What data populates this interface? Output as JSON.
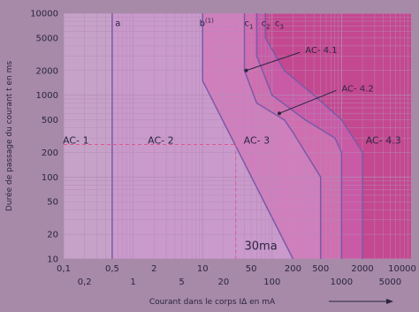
{
  "colors": {
    "background": "#a78aa8",
    "zone_ac1": "#c6a2c8",
    "zone_ac2": "#c99acb",
    "zone_ac3": "#d07fbd",
    "zone_ac41": "#cf6fb0",
    "zone_ac42": "#c95aa6",
    "zone_ac43": "#c4488f",
    "grid": "#b58ab8",
    "curve": "#7a5aa8",
    "text": "#2a2540",
    "dashed": "#e0578f"
  },
  "chart_data": {
    "type": "line",
    "x_scale": "log",
    "y_scale": "log",
    "xlabel": "Courant dans le corps IΔ en mA",
    "ylabel": "Durée de passage du courant t en ms",
    "xlim": [
      0.1,
      10000
    ],
    "ylim": [
      10,
      10000
    ],
    "x_ticks": [
      {
        "value": 0.1,
        "label": "0,1",
        "row": 1
      },
      {
        "value": 0.2,
        "label": "0,2",
        "row": 2
      },
      {
        "value": 0.5,
        "label": "0,5",
        "row": 1
      },
      {
        "value": 1,
        "label": "1",
        "row": 2
      },
      {
        "value": 2,
        "label": "2",
        "row": 1
      },
      {
        "value": 5,
        "label": "5",
        "row": 2
      },
      {
        "value": 10,
        "label": "10",
        "row": 1
      },
      {
        "value": 20,
        "label": "20",
        "row": 2
      },
      {
        "value": 50,
        "label": "50",
        "row": 1
      },
      {
        "value": 100,
        "label": "100",
        "row": 2
      },
      {
        "value": 200,
        "label": "200",
        "row": 1
      },
      {
        "value": 500,
        "label": "500",
        "row": 1
      },
      {
        "value": 1000,
        "label": "1000",
        "row": 2
      },
      {
        "value": 2000,
        "label": "2000",
        "row": 1
      },
      {
        "value": 5000,
        "label": "5000",
        "row": 2
      },
      {
        "value": 10000,
        "label": "10000",
        "row": 1
      }
    ],
    "y_ticks": [
      {
        "value": 10000,
        "label": "10000"
      },
      {
        "value": 5000,
        "label": "5000"
      },
      {
        "value": 2000,
        "label": "2000"
      },
      {
        "value": 1000,
        "label": "1000"
      },
      {
        "value": 500,
        "label": "500"
      },
      {
        "value": 200,
        "label": "200"
      },
      {
        "value": 100,
        "label": "100"
      },
      {
        "value": 50,
        "label": "50"
      },
      {
        "value": 20,
        "label": "20"
      },
      {
        "value": 10,
        "label": "10"
      }
    ],
    "series": [
      {
        "name": "a",
        "points": [
          [
            0.5,
            10
          ],
          [
            0.5,
            10000
          ]
        ]
      },
      {
        "name": "b",
        "points": [
          [
            10,
            10000
          ],
          [
            10,
            1500
          ],
          [
            200,
            10
          ]
        ]
      },
      {
        "name": "c1",
        "points": [
          [
            40,
            10000
          ],
          [
            40,
            2000
          ],
          [
            60,
            800
          ],
          [
            150,
            500
          ],
          [
            200,
            350
          ],
          [
            500,
            100
          ],
          [
            500,
            10
          ]
        ]
      },
      {
        "name": "c2",
        "points": [
          [
            60,
            10000
          ],
          [
            60,
            3000
          ],
          [
            100,
            1000
          ],
          [
            300,
            500
          ],
          [
            800,
            300
          ],
          [
            1000,
            200
          ],
          [
            1000,
            10
          ]
        ]
      },
      {
        "name": "c3",
        "points": [
          [
            80,
            10000
          ],
          [
            80,
            5000
          ],
          [
            150,
            2000
          ],
          [
            400,
            1000
          ],
          [
            1000,
            500
          ],
          [
            2000,
            200
          ],
          [
            2000,
            10
          ]
        ]
      }
    ],
    "zones": [
      {
        "label": "AC- 1",
        "x": 0.15,
        "y": 200
      },
      {
        "label": "AC- 2",
        "x": 2.5,
        "y": 200
      },
      {
        "label": "AC- 3",
        "x": 60,
        "y": 200
      },
      {
        "label": "AC- 4.3",
        "x": 4000,
        "y": 200
      }
    ],
    "annotations": [
      {
        "label": "AC- 4.1",
        "x": 300,
        "y": 3500,
        "target": [
          40,
          2000
        ]
      },
      {
        "label": "AC- 4.2",
        "x": 1000,
        "y": 1200,
        "target": [
          120,
          600
        ]
      },
      {
        "label": "a",
        "x": 0.55,
        "y": 7000
      },
      {
        "label": "b",
        "sup": "(1)",
        "x": 9,
        "y": 7000
      },
      {
        "label": "c",
        "sub": "1",
        "x": 40,
        "y": 7000
      },
      {
        "label": "c",
        "sub": "2",
        "x": 70,
        "y": 7000
      },
      {
        "label": "c",
        "sub": "3",
        "x": 110,
        "y": 7000
      },
      {
        "label": "30ma",
        "x": 40,
        "y": 13
      }
    ],
    "reference_30ma": {
      "x": 30,
      "y": 250
    }
  }
}
